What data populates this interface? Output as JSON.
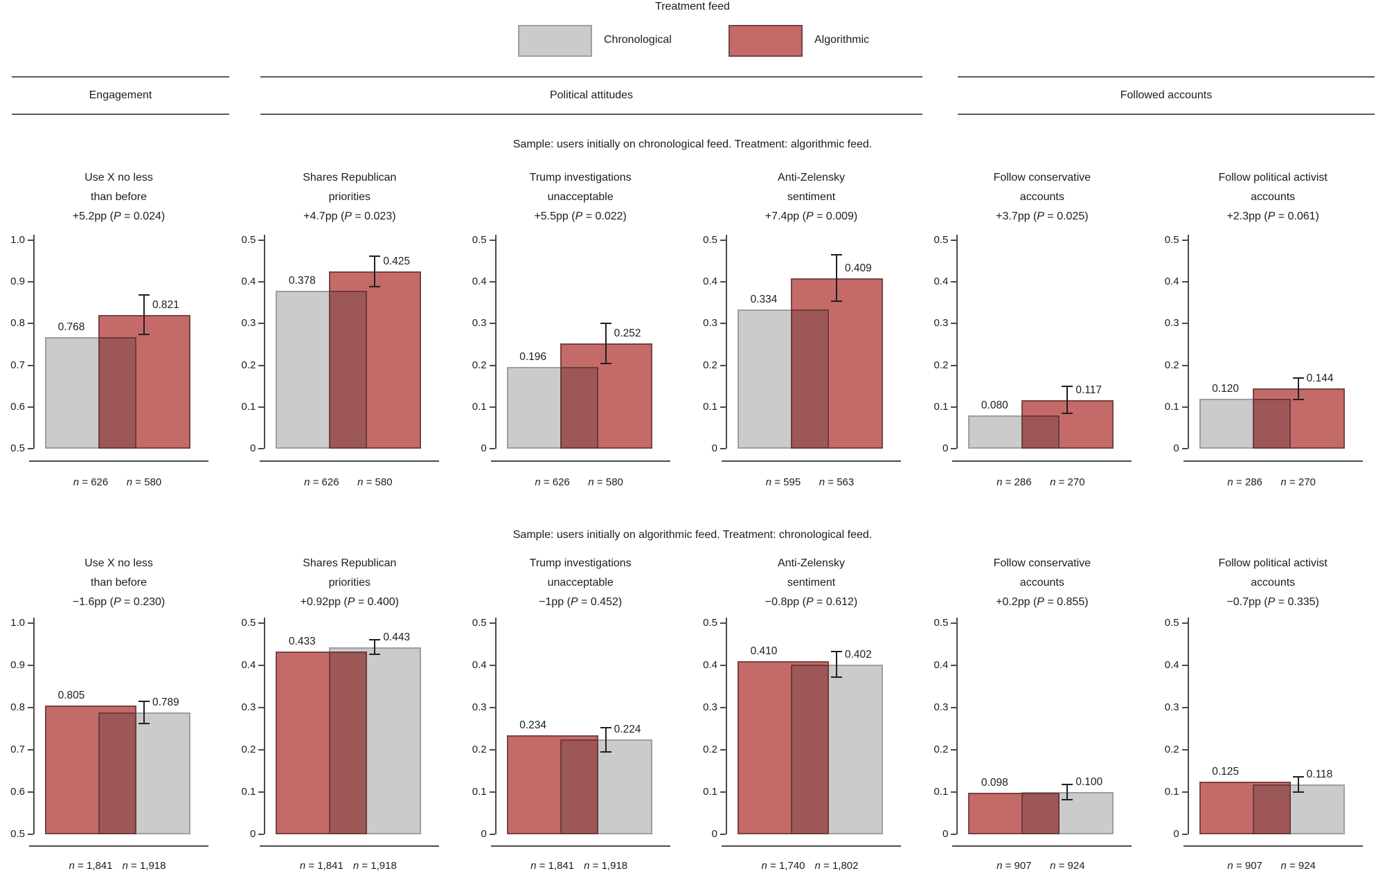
{
  "legend": {
    "title": "Treatment feed",
    "items": [
      {
        "feed": "chronological",
        "label": "Chronological",
        "color": "#cbcbcb",
        "border": "#9e9e9e"
      },
      {
        "feed": "algorithmic",
        "label": "Algorithmic",
        "color": "#c46b6a",
        "border": "#754342"
      }
    ]
  },
  "groups": [
    {
      "label": "Engagement"
    },
    {
      "label": "Political attitudes"
    },
    {
      "label": "Followed accounts"
    }
  ],
  "overlap_color": "#9d5756",
  "overlap_border": "#6b3c3b",
  "axis_color": "#4a4a4a",
  "error_bar_color": "#1f1f1f",
  "chart_data": {
    "type": "bar",
    "title": "Treatment feed",
    "legend_entries": [
      "Chronological",
      "Algorithmic"
    ],
    "grid": false,
    "rows": [
      {
        "subtitle": "Sample: users initially on chronological feed. Treatment: algorithmic feed.",
        "panels": [
          {
            "title": [
              "Use X no less",
              "than before"
            ],
            "effect": "+5.2pp (P = 0.024)",
            "ylim": [
              0.5,
              1.0
            ],
            "yticks": [
              0.5,
              0.6,
              0.7,
              0.8,
              0.9,
              1.0
            ],
            "bars": [
              {
                "feed": "chronological",
                "value": 0.768,
                "label": "0.768",
                "n": "n = 626"
              },
              {
                "feed": "algorithmic",
                "value": 0.821,
                "label": "0.821",
                "n": "n = 580",
                "ci": [
                  0.774,
                  0.868
                ]
              }
            ]
          },
          {
            "title": [
              "Shares Republican",
              "priorities"
            ],
            "effect": "+4.7pp (P = 0.023)",
            "ylim": [
              0,
              0.5
            ],
            "yticks": [
              0,
              0.1,
              0.2,
              0.3,
              0.4,
              0.5
            ],
            "bars": [
              {
                "feed": "chronological",
                "value": 0.378,
                "label": "0.378",
                "n": "n = 626"
              },
              {
                "feed": "algorithmic",
                "value": 0.425,
                "label": "0.425",
                "n": "n = 580",
                "ci": [
                  0.389,
                  0.461
                ]
              }
            ]
          },
          {
            "title": [
              "Trump investigations",
              "unacceptable"
            ],
            "effect": "+5.5pp (P = 0.022)",
            "ylim": [
              0,
              0.5
            ],
            "yticks": [
              0,
              0.1,
              0.2,
              0.3,
              0.4,
              0.5
            ],
            "bars": [
              {
                "feed": "chronological",
                "value": 0.196,
                "label": "0.196",
                "n": "n = 626"
              },
              {
                "feed": "algorithmic",
                "value": 0.252,
                "label": "0.252",
                "n": "n = 580",
                "ci": [
                  0.204,
                  0.3
                ]
              }
            ]
          },
          {
            "title": [
              "Anti-Zelensky",
              "sentiment"
            ],
            "effect": "+7.4pp (P = 0.009)",
            "ylim": [
              0,
              0.5
            ],
            "yticks": [
              0,
              0.1,
              0.2,
              0.3,
              0.4,
              0.5
            ],
            "bars": [
              {
                "feed": "chronological",
                "value": 0.334,
                "label": "0.334",
                "n": "n = 595"
              },
              {
                "feed": "algorithmic",
                "value": 0.409,
                "label": "0.409",
                "n": "n = 563",
                "ci": [
                  0.353,
                  0.465
                ]
              }
            ]
          },
          {
            "title": [
              "Follow conservative",
              "accounts"
            ],
            "effect": "+3.7pp (P = 0.025)",
            "ylim": [
              0,
              0.5
            ],
            "yticks": [
              0,
              0.1,
              0.2,
              0.3,
              0.4,
              0.5
            ],
            "bars": [
              {
                "feed": "chronological",
                "value": 0.08,
                "label": "0.080",
                "n": "n = 286"
              },
              {
                "feed": "algorithmic",
                "value": 0.117,
                "label": "0.117",
                "n": "n = 270",
                "ci": [
                  0.085,
                  0.149
                ]
              }
            ]
          },
          {
            "title": [
              "Follow political activist",
              "accounts"
            ],
            "effect": "+2.3pp (P = 0.061)",
            "ylim": [
              0,
              0.5
            ],
            "yticks": [
              0,
              0.1,
              0.2,
              0.3,
              0.4,
              0.5
            ],
            "bars": [
              {
                "feed": "chronological",
                "value": 0.12,
                "label": "0.120",
                "n": "n = 286"
              },
              {
                "feed": "algorithmic",
                "value": 0.144,
                "label": "0.144",
                "n": "n = 270",
                "ci": [
                  0.118,
                  0.17
                ]
              }
            ]
          }
        ]
      },
      {
        "subtitle": "Sample: users initially on algorithmic feed. Treatment: chronological feed.",
        "panels": [
          {
            "title": [
              "Use X no less",
              "than before"
            ],
            "effect": "−1.6pp (P = 0.230)",
            "ylim": [
              0.5,
              1.0
            ],
            "yticks": [
              0.5,
              0.6,
              0.7,
              0.8,
              0.9,
              1.0
            ],
            "bars": [
              {
                "feed": "algorithmic",
                "value": 0.805,
                "label": "0.805",
                "n": "n = 1,841"
              },
              {
                "feed": "chronological",
                "value": 0.789,
                "label": "0.789",
                "n": "n = 1,918",
                "ci": [
                  0.763,
                  0.815
                ]
              }
            ]
          },
          {
            "title": [
              "Shares Republican",
              "priorities"
            ],
            "effect": "+0.92pp (P = 0.400)",
            "ylim": [
              0,
              0.5
            ],
            "yticks": [
              0,
              0.1,
              0.2,
              0.3,
              0.4,
              0.5
            ],
            "bars": [
              {
                "feed": "algorithmic",
                "value": 0.433,
                "label": "0.433",
                "n": "n = 1,841"
              },
              {
                "feed": "chronological",
                "value": 0.443,
                "label": "0.443",
                "n": "n = 1,918",
                "ci": [
                  0.426,
                  0.46
                ]
              }
            ]
          },
          {
            "title": [
              "Trump investigations",
              "unacceptable"
            ],
            "effect": "−1pp (P = 0.452)",
            "ylim": [
              0,
              0.5
            ],
            "yticks": [
              0,
              0.1,
              0.2,
              0.3,
              0.4,
              0.5
            ],
            "bars": [
              {
                "feed": "algorithmic",
                "value": 0.234,
                "label": "0.234",
                "n": "n = 1,841"
              },
              {
                "feed": "chronological",
                "value": 0.224,
                "label": "0.224",
                "n": "n = 1,918",
                "ci": [
                  0.195,
                  0.253
                ]
              }
            ]
          },
          {
            "title": [
              "Anti-Zelensky",
              "sentiment"
            ],
            "effect": "−0.8pp (P = 0.612)",
            "ylim": [
              0,
              0.5
            ],
            "yticks": [
              0,
              0.1,
              0.2,
              0.3,
              0.4,
              0.5
            ],
            "bars": [
              {
                "feed": "algorithmic",
                "value": 0.41,
                "label": "0.410",
                "n": "n = 1,740"
              },
              {
                "feed": "chronological",
                "value": 0.402,
                "label": "0.402",
                "n": "n = 1,802",
                "ci": [
                  0.372,
                  0.432
                ]
              }
            ]
          },
          {
            "title": [
              "Follow conservative",
              "accounts"
            ],
            "effect": "+0.2pp (P = 0.855)",
            "ylim": [
              0,
              0.5
            ],
            "yticks": [
              0,
              0.1,
              0.2,
              0.3,
              0.4,
              0.5
            ],
            "bars": [
              {
                "feed": "algorithmic",
                "value": 0.098,
                "label": "0.098",
                "n": "n = 907"
              },
              {
                "feed": "chronological",
                "value": 0.1,
                "label": "0.100",
                "n": "n = 924",
                "ci": [
                  0.082,
                  0.118
                ]
              }
            ]
          },
          {
            "title": [
              "Follow political activist",
              "accounts"
            ],
            "effect": "−0.7pp (P = 0.335)",
            "ylim": [
              0,
              0.5
            ],
            "yticks": [
              0,
              0.1,
              0.2,
              0.3,
              0.4,
              0.5
            ],
            "bars": [
              {
                "feed": "algorithmic",
                "value": 0.125,
                "label": "0.125",
                "n": "n = 907"
              },
              {
                "feed": "chronological",
                "value": 0.118,
                "label": "0.118",
                "n": "n = 924",
                "ci": [
                  0.1,
                  0.136
                ]
              }
            ]
          }
        ]
      }
    ]
  }
}
